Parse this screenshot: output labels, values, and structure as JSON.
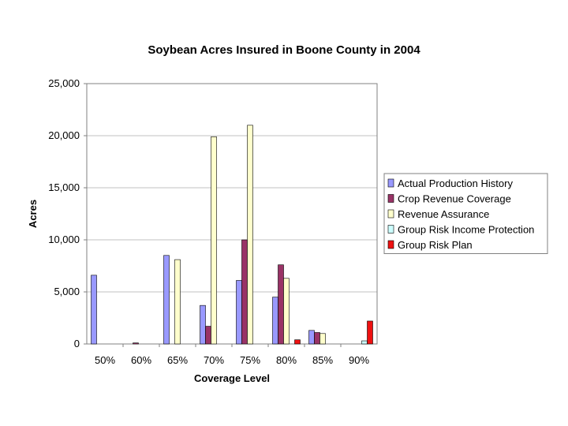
{
  "chart_data": {
    "type": "bar",
    "title": "Soybean Acres Insured in Boone County in 2004",
    "xlabel": "Coverage Level",
    "ylabel": "Acres",
    "ylim": [
      0,
      25000
    ],
    "yticks": [
      0,
      5000,
      10000,
      15000,
      20000,
      25000
    ],
    "ytick_labels": [
      "0",
      "5,000",
      "10,000",
      "15,000",
      "20,000",
      "25,000"
    ],
    "grid": true,
    "legend_position": "right",
    "categories": [
      "50%",
      "60%",
      "65%",
      "70%",
      "75%",
      "80%",
      "85%",
      "90%"
    ],
    "series": [
      {
        "name": "Actual Production History",
        "color": "#9999ff",
        "values": [
          6600,
          0,
          8500,
          3700,
          6100,
          4500,
          1300,
          0
        ]
      },
      {
        "name": "Crop Revenue Coverage",
        "color": "#993366",
        "values": [
          0,
          100,
          0,
          1700,
          10000,
          7600,
          1100,
          0
        ]
      },
      {
        "name": "Revenue Assurance",
        "color": "#ffffcc",
        "values": [
          0,
          0,
          8100,
          19900,
          21000,
          6300,
          1000,
          0
        ]
      },
      {
        "name": "Group Risk Income Protection",
        "color": "#ccffff",
        "values": [
          0,
          0,
          0,
          0,
          0,
          0,
          0,
          300
        ]
      },
      {
        "name": "Group Risk Plan",
        "color": "#ee1111",
        "values": [
          0,
          0,
          0,
          0,
          0,
          400,
          0,
          2200
        ]
      }
    ]
  }
}
